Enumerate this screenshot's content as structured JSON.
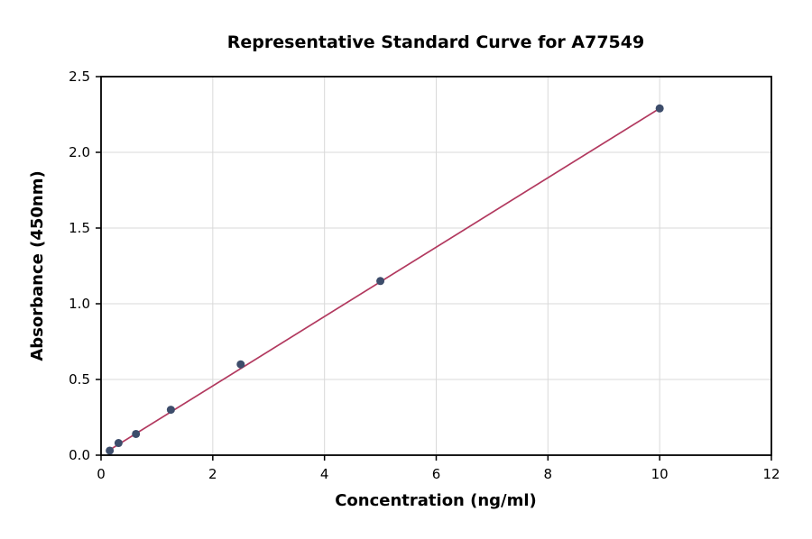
{
  "chart_data": {
    "type": "scatter",
    "title": "Representative Standard Curve for A77549",
    "xlabel": "Concentration (ng/ml)",
    "ylabel": "Absorbance (450nm)",
    "xlim": [
      0,
      12
    ],
    "ylim": [
      0,
      2.5
    ],
    "grid": true,
    "legend": false,
    "x_ticks": [
      {
        "v": 0,
        "label": "0"
      },
      {
        "v": 2,
        "label": "2"
      },
      {
        "v": 4,
        "label": "4"
      },
      {
        "v": 6,
        "label": "6"
      },
      {
        "v": 8,
        "label": "8"
      },
      {
        "v": 10,
        "label": "10"
      },
      {
        "v": 12,
        "label": "12"
      }
    ],
    "y_ticks": [
      {
        "v": 0.0,
        "label": "0.0"
      },
      {
        "v": 0.5,
        "label": "0.5"
      },
      {
        "v": 1.0,
        "label": "1.0"
      },
      {
        "v": 1.5,
        "label": "1.5"
      },
      {
        "v": 2.0,
        "label": "2.0"
      },
      {
        "v": 2.5,
        "label": "2.5"
      }
    ],
    "points": [
      {
        "x": 0.156,
        "y": 0.03
      },
      {
        "x": 0.313,
        "y": 0.08
      },
      {
        "x": 0.625,
        "y": 0.14
      },
      {
        "x": 1.25,
        "y": 0.3
      },
      {
        "x": 2.5,
        "y": 0.6
      },
      {
        "x": 5,
        "y": 1.15
      },
      {
        "x": 10,
        "y": 2.29
      }
    ],
    "trendline": {
      "x1": 0.156,
      "y1": 0.035,
      "x2": 10,
      "y2": 2.29
    },
    "colors": {
      "point": "#3d4d6b",
      "line": "#b2395f",
      "grid": "#d9d9d9",
      "axis": "#000000",
      "background": "#ffffff"
    }
  }
}
